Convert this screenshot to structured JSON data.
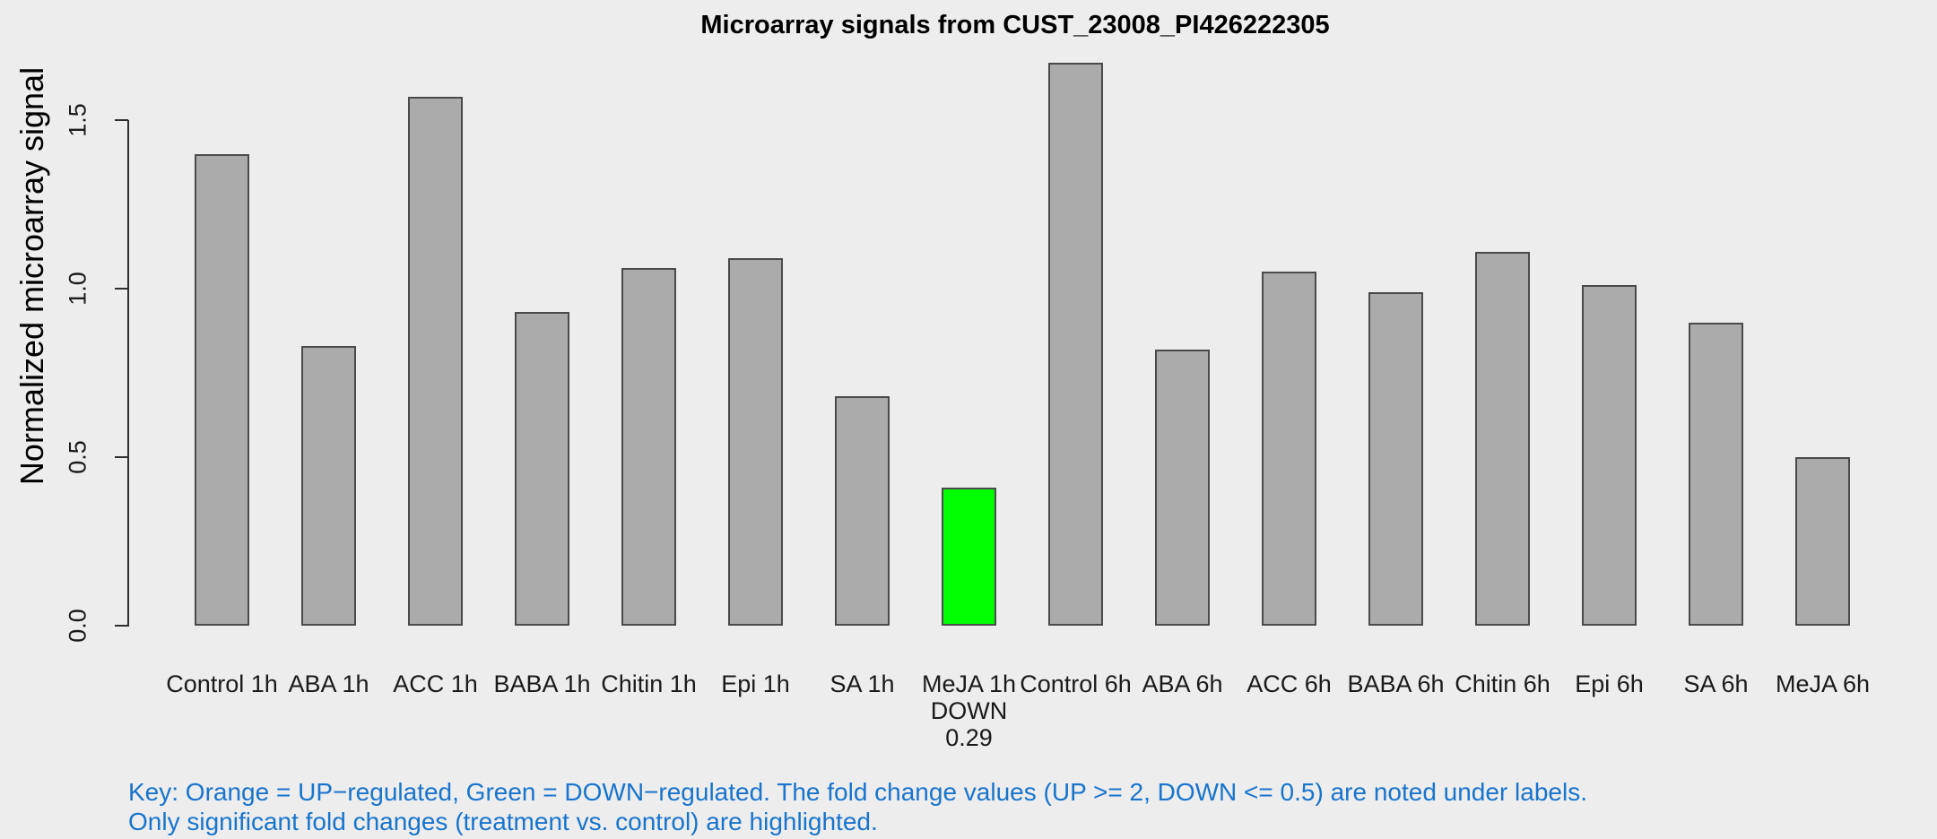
{
  "chart_data": {
    "type": "bar",
    "title": "Microarray signals from CUST_23008_PI426222305",
    "ylabel": "Normalized microarray signal",
    "xlabel": "",
    "ylim": [
      0,
      1.68
    ],
    "yticks": [
      "0.0",
      "0.5",
      "1.0",
      "1.5"
    ],
    "ytick_values": [
      0,
      0.5,
      1.0,
      1.5
    ],
    "grid": false,
    "legend_position": "none",
    "categories": [
      "Control 1h",
      "ABA 1h",
      "ACC 1h",
      "BABA 1h",
      "Chitin 1h",
      "Epi 1h",
      "SA 1h",
      "MeJA 1h",
      "Control 6h",
      "ABA 6h",
      "ACC 6h",
      "BABA 6h",
      "Chitin 6h",
      "Epi 6h",
      "SA 6h",
      "MeJA 6h"
    ],
    "values": [
      1.4,
      0.83,
      1.57,
      0.93,
      1.06,
      1.09,
      0.68,
      0.41,
      1.67,
      0.82,
      1.05,
      0.99,
      1.11,
      1.01,
      0.9,
      0.5
    ],
    "highlighted_bars": [
      {
        "index": 7,
        "category": "MeJA 1h",
        "direction": "DOWN",
        "fold_change": "0.29",
        "color": "#00FF00"
      }
    ],
    "colors": {
      "background": "#EDEDED",
      "bar_fill": "#ABABAB",
      "bar_border": "#4A4A4A",
      "down_highlight": "#00FF00",
      "up_highlight": "#FFA500",
      "key_text": "#1874CD",
      "axis": "#2E2E2E"
    }
  },
  "key": {
    "line1": "Key: Orange = UP−regulated, Green = DOWN−regulated. The fold change values (UP >= 2, DOWN <= 0.5) are noted under labels.",
    "line2": "Only significant fold changes (treatment vs. control) are highlighted."
  }
}
